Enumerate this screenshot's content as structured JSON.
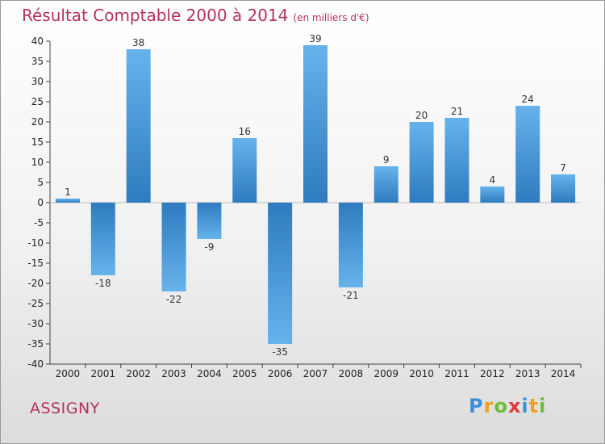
{
  "chart_data": {
    "type": "bar",
    "title": "Résultat Comptable 2000 à 2014",
    "unit": "(en milliers d'€)",
    "xlabel": "",
    "ylabel": "",
    "categories": [
      "2000",
      "2001",
      "2002",
      "2003",
      "2004",
      "2005",
      "2006",
      "2007",
      "2008",
      "2009",
      "2010",
      "2011",
      "2012",
      "2013",
      "2014"
    ],
    "values": [
      1,
      -18,
      38,
      -22,
      -9,
      16,
      -35,
      39,
      -21,
      9,
      20,
      21,
      4,
      24,
      7
    ],
    "ylim": [
      -40,
      40
    ],
    "yticks": [
      40,
      35,
      30,
      25,
      20,
      15,
      10,
      5,
      0,
      -5,
      -10,
      -15,
      -20,
      -25,
      -30,
      -35,
      -40
    ],
    "grid": false,
    "colors": {
      "bar_light": "#66b3ec",
      "bar_dark": "#2e7bbf",
      "axis": "#444444"
    }
  },
  "commune": "ASSIGNY",
  "logo": {
    "letters": [
      "P",
      "r",
      "o",
      "x",
      "i",
      "t",
      "i"
    ],
    "colors": [
      "#3a8fd8",
      "#f0a020",
      "#6abf3a",
      "#e03a3a",
      "#3a8fd8",
      "#f0a020",
      "#6abf3a"
    ]
  }
}
